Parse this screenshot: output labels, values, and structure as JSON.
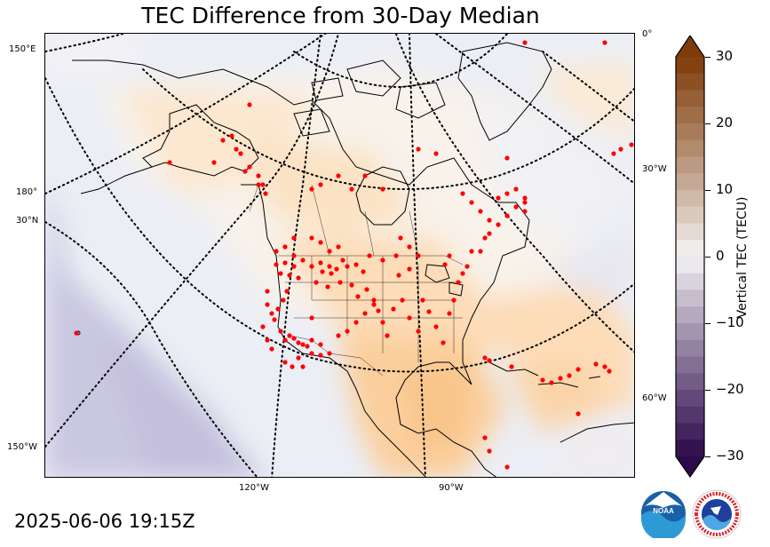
{
  "title": "TEC Difference from 30-Day Median",
  "timestamp": "2025-06-06 19:15Z",
  "colorbar": {
    "label": "Vertical TEC (TECU)",
    "min": -30,
    "max": 30,
    "step": 2.5,
    "ticks": [
      "30",
      "20",
      "10",
      "0",
      "−10",
      "−20",
      "−30"
    ],
    "colors": {
      "negative_max": "#2d0a4b",
      "neutral": "#f7f7f7",
      "positive_max": "#7f3b08"
    }
  },
  "grid_labels": {
    "left": [
      "150°E",
      "180°",
      "30°N",
      "150°W"
    ],
    "right": [
      "0°",
      "30°W",
      "60°W"
    ],
    "bottom": [
      "120°W",
      "90°W"
    ]
  },
  "logos": [
    {
      "name": "noaa-logo",
      "text": "NOAA"
    },
    {
      "name": "nws-logo",
      "text": "NATIONAL WEATHER SERVICE"
    }
  ],
  "marker_color": "#ff0000",
  "station_count": 150
}
